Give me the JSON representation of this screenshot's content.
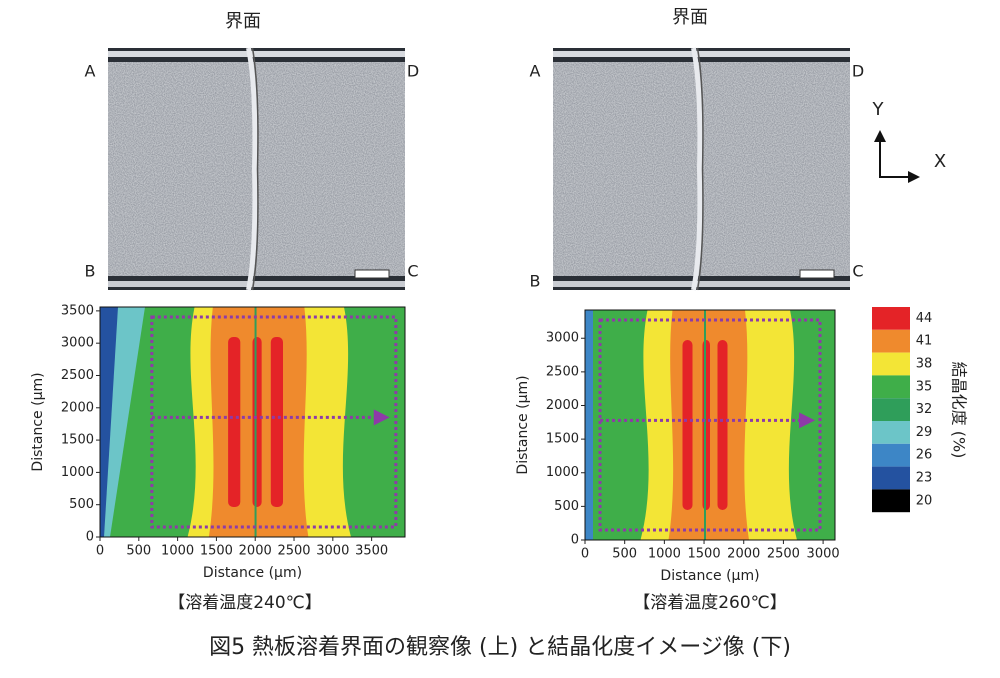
{
  "panels": [
    {
      "top_label": "界面",
      "corners": [
        "A",
        "B",
        "C",
        "D"
      ],
      "map": {
        "xlabel": "Distance (μm)",
        "ylabel": "Distance (μm)",
        "xlim": [
          0,
          3930
        ],
        "ylim": [
          0,
          3560
        ],
        "xticks": [
          0,
          500,
          1000,
          1500,
          2000,
          2500,
          3000,
          3500
        ],
        "yticks": [
          0,
          500,
          1000,
          1500,
          2000,
          2500,
          3000,
          3500
        ]
      },
      "caption": "【溶着温度240℃】"
    },
    {
      "top_label": "界面",
      "corners": [
        "A",
        "B",
        "C",
        "D"
      ],
      "map": {
        "xlabel": "Distance (μm)",
        "ylabel": "Distance (μm)",
        "xlim": [
          0,
          3150
        ],
        "ylim": [
          0,
          3420
        ],
        "xticks": [
          0,
          500,
          1000,
          1500,
          2000,
          2500,
          3000
        ],
        "yticks": [
          0,
          500,
          1000,
          1500,
          2000,
          2500,
          3000
        ]
      },
      "caption": "【溶着温度260℃】"
    }
  ],
  "axes_indicator": {
    "y": "Y",
    "x": "X"
  },
  "colorbar": {
    "label": "結晶化度 (%)",
    "ticks": [
      44,
      41,
      38,
      35,
      32,
      29,
      26,
      23,
      20
    ],
    "colors": [
      "#e42327",
      "#ef8a2d",
      "#f3e536",
      "#3fae49",
      "#2f9e5a",
      "#6cc5c8",
      "#3d86c6",
      "#2452a0",
      "#000000"
    ]
  },
  "figure_caption": "図5 熱板溶着界面の観察像 (上) と結晶化度イメージ像 (下)"
}
